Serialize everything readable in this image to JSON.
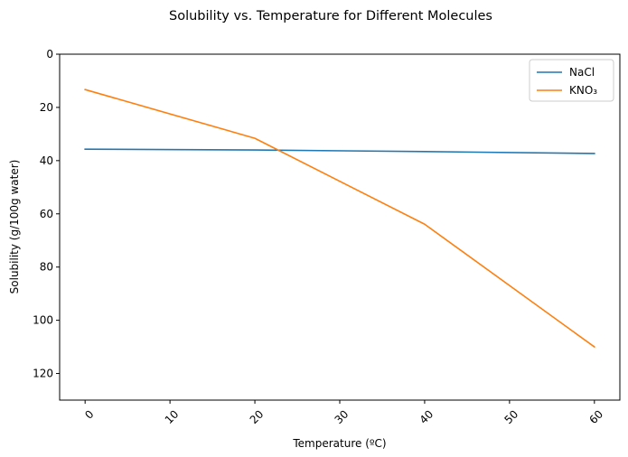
{
  "chart_data": {
    "type": "line",
    "title": "Solubility vs. Temperature for Different Molecules",
    "xlabel": "Temperature (ºC)",
    "ylabel": "Solubility (g/100g water)",
    "x": [
      0,
      20,
      40,
      60
    ],
    "xlim": [
      -3,
      63
    ],
    "ylim": [
      130,
      0
    ],
    "y_inverted": true,
    "xticks": [
      0,
      10,
      20,
      30,
      40,
      50,
      60
    ],
    "yticks": [
      0,
      20,
      40,
      60,
      80,
      100,
      120
    ],
    "xtick_rotation": 45,
    "grid": false,
    "legend_position": "top-right",
    "series": [
      {
        "name": "NaCl",
        "color": "#1f77b4",
        "values": [
          35.7,
          36.0,
          36.6,
          37.3
        ]
      },
      {
        "name": "KNO₃",
        "color": "#ff7f0e",
        "values": [
          13.3,
          31.6,
          63.9,
          110.0
        ]
      }
    ]
  }
}
